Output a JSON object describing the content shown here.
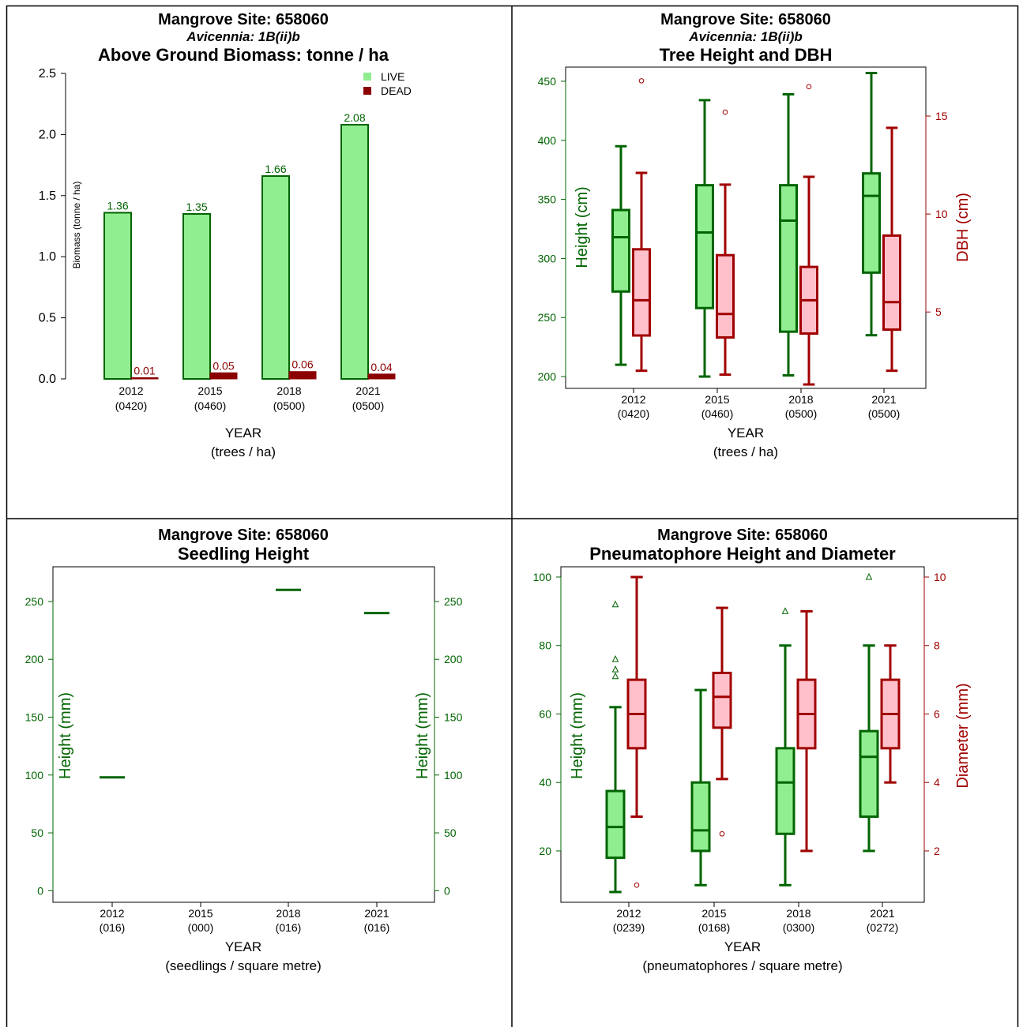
{
  "colors": {
    "live_fill": "#90EE90",
    "live_stroke": "#006400",
    "dead_fill": "#8B0000",
    "dbh_fill": "#FFC0CB",
    "dbh_stroke": "#A00000",
    "frame": "#000000"
  },
  "chart_data": [
    {
      "type": "bar",
      "title": "Mangrove Site: 658060",
      "subtitle": "Avicennia: 1B(ii)b",
      "title2": "Above Ground Biomass: tonne / ha",
      "xlabel": "YEAR",
      "xlabel2": "(trees / ha)",
      "ylabel": "Biomass (tonne / ha)",
      "ylim": [
        0,
        2.5
      ],
      "yticks": [
        "0.0",
        "0.5",
        "1.0",
        "1.5",
        "2.0",
        "2.5"
      ],
      "categories": [
        "2012",
        "2015",
        "2018",
        "2021"
      ],
      "category_sub": [
        "(0420)",
        "(0460)",
        "(0500)",
        "(0500)"
      ],
      "legend_position": "top-right",
      "series": [
        {
          "name": "LIVE",
          "values": [
            1.36,
            1.35,
            1.66,
            2.08
          ],
          "labels": [
            "1.36",
            "1.35",
            "1.66",
            "2.08"
          ]
        },
        {
          "name": "DEAD",
          "values": [
            0.01,
            0.05,
            0.06,
            0.04
          ],
          "labels": [
            "0.01",
            "0.05",
            "0.06",
            "0.04"
          ]
        }
      ]
    },
    {
      "type": "boxplot",
      "title": "Mangrove Site: 658060",
      "subtitle": "Avicennia: 1B(ii)b",
      "title2": "Tree Height and DBH",
      "xlabel": "YEAR",
      "xlabel2": "(trees / ha)",
      "ylabel_left": "Height (cm)",
      "ylabel_right": "DBH (cm)",
      "ylim_left": [
        190,
        462
      ],
      "ylim_right": [
        1.1,
        17.5
      ],
      "yticks_left": [
        "200",
        "250",
        "300",
        "350",
        "400",
        "450"
      ],
      "yticks_right": [
        "5",
        "10",
        "15"
      ],
      "categories": [
        "2012",
        "2015",
        "2018",
        "2021"
      ],
      "category_sub": [
        "(0420)",
        "(0460)",
        "(0500)",
        "(0500)"
      ],
      "series": [
        {
          "name": "Height",
          "axis": "left",
          "boxes": [
            {
              "min": 210,
              "q1": 272,
              "median": 318,
              "q3": 341,
              "max": 395,
              "outliers": []
            },
            {
              "min": 200,
              "q1": 258,
              "median": 322,
              "q3": 362,
              "max": 434,
              "outliers": []
            },
            {
              "min": 201,
              "q1": 238,
              "median": 332,
              "q3": 362,
              "max": 439,
              "outliers": []
            },
            {
              "min": 235,
              "q1": 288,
              "median": 353,
              "q3": 372,
              "max": 457,
              "outliers": []
            }
          ]
        },
        {
          "name": "DBH",
          "axis": "right",
          "boxes": [
            {
              "min": 2.0,
              "q1": 3.8,
              "median": 5.6,
              "q3": 8.2,
              "max": 12.1,
              "outliers": [
                16.8
              ]
            },
            {
              "min": 1.8,
              "q1": 3.7,
              "median": 4.9,
              "q3": 7.9,
              "max": 11.5,
              "outliers": [
                15.2
              ]
            },
            {
              "min": 1.3,
              "q1": 3.9,
              "median": 5.6,
              "q3": 7.3,
              "max": 11.9,
              "outliers": [
                16.5
              ]
            },
            {
              "min": 2.0,
              "q1": 4.1,
              "median": 5.5,
              "q3": 8.9,
              "max": 14.4,
              "outliers": []
            }
          ]
        }
      ]
    },
    {
      "type": "scatter",
      "title": "Mangrove Site: 658060",
      "title2": "Seedling Height",
      "xlabel": "YEAR",
      "xlabel2": "(seedlings / square metre)",
      "ylabel_left": "Height (mm)",
      "ylabel_right": "Height (mm)",
      "ylim": [
        -10,
        280
      ],
      "yticks": [
        "0",
        "50",
        "100",
        "150",
        "200",
        "250"
      ],
      "categories": [
        "2012",
        "2015",
        "2018",
        "2021"
      ],
      "category_sub": [
        "(016)",
        "(000)",
        "(016)",
        "(016)"
      ],
      "values": [
        98,
        null,
        260,
        240
      ]
    },
    {
      "type": "boxplot",
      "title": "Mangrove Site: 658060",
      "title2": "Pneumatophore Height and Diameter",
      "xlabel": "YEAR",
      "xlabel2": "(pneumatophores / square metre)",
      "ylabel_left": "Height (mm)",
      "ylabel_right": "Diameter (mm)",
      "ylim_left": [
        5,
        103
      ],
      "ylim_right": [
        0.5,
        10.3
      ],
      "yticks_left": [
        "20",
        "40",
        "60",
        "80",
        "100"
      ],
      "yticks_right": [
        "2",
        "4",
        "6",
        "8",
        "10"
      ],
      "categories": [
        "2012",
        "2015",
        "2018",
        "2021"
      ],
      "category_sub": [
        "(0239)",
        "(0168)",
        "(0300)",
        "(0272)"
      ],
      "series": [
        {
          "name": "Height",
          "axis": "left",
          "boxes": [
            {
              "min": 8,
              "q1": 18,
              "median": 27,
              "q3": 37.5,
              "max": 62,
              "outliers": [
                71,
                73,
                76,
                92
              ]
            },
            {
              "min": 10,
              "q1": 20,
              "median": 26,
              "q3": 40,
              "max": 67,
              "outliers": []
            },
            {
              "min": 10,
              "q1": 25,
              "median": 40,
              "q3": 50,
              "max": 80,
              "outliers": [
                90
              ]
            },
            {
              "min": 20,
              "q1": 30,
              "median": 47.5,
              "q3": 55,
              "max": 80,
              "outliers": [
                100
              ]
            }
          ]
        },
        {
          "name": "Diameter",
          "axis": "right",
          "boxes": [
            {
              "min": 3,
              "q1": 5,
              "median": 6,
              "q3": 7,
              "max": 10,
              "outliers": [
                1
              ]
            },
            {
              "min": 4.1,
              "q1": 5.6,
              "median": 6.5,
              "q3": 7.2,
              "max": 9.1,
              "outliers": [
                2.5
              ]
            },
            {
              "min": 2,
              "q1": 5,
              "median": 6,
              "q3": 7,
              "max": 9,
              "outliers": []
            },
            {
              "min": 4,
              "q1": 5,
              "median": 6,
              "q3": 7,
              "max": 8,
              "outliers": []
            }
          ]
        }
      ]
    }
  ]
}
